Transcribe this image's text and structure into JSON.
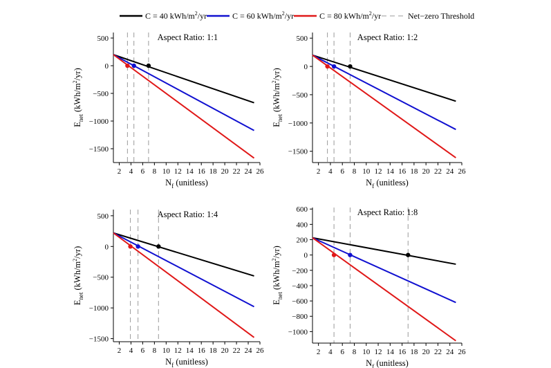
{
  "colors": {
    "c40": "#000000",
    "c60": "#1010d0",
    "c80": "#e01818",
    "threshold": "#9a9a9a"
  },
  "legend": {
    "c40": {
      "pre": "C = 40 kWh/m",
      "sup": "2",
      "post": "/yr"
    },
    "c60": {
      "pre": "C = 60 kWh/m",
      "sup": "2",
      "post": "/yr"
    },
    "c80": {
      "pre": "C = 80 kWh/m",
      "sup": "2",
      "post": "/yr"
    },
    "threshold": "Net−zero Threshold"
  },
  "chart_data": [
    {
      "type": "line",
      "title": "Aspect Ratio: 1:1",
      "xlabel": {
        "main": "N",
        "sub": "f",
        "rest": " (unitless)"
      },
      "ylabel": {
        "main": "E",
        "sub": "net",
        "pre": " (kWh/m",
        "sup": "2",
        "post": "/yr)"
      },
      "xlim": [
        1,
        26
      ],
      "ylim": [
        -1750,
        600
      ],
      "xticks": [
        2,
        4,
        6,
        8,
        10,
        12,
        14,
        16,
        18,
        20,
        22,
        24,
        26
      ],
      "yticks": [
        500,
        0,
        -500,
        -1000,
        -1500
      ],
      "ytick_labels": [
        "500",
        "0",
        "−500",
        "−1000",
        "−1500"
      ],
      "series": [
        {
          "name": "C = 40 kWh/m2/yr",
          "color_key": "c40",
          "x": [
            1,
            25
          ],
          "y": [
            200,
            -670
          ],
          "threshold_x": 7.0
        },
        {
          "name": "C = 60 kWh/m2/yr",
          "color_key": "c60",
          "x": [
            1,
            25
          ],
          "y": [
            200,
            -1170
          ],
          "threshold_x": 4.5
        },
        {
          "name": "C = 80 kWh/m2/yr",
          "color_key": "c80",
          "x": [
            1,
            25
          ],
          "y": [
            200,
            -1670
          ],
          "threshold_x": 3.4
        }
      ]
    },
    {
      "type": "line",
      "title": "Aspect Ratio: 1:2",
      "xlabel": {
        "main": "N",
        "sub": "f",
        "rest": " (unitless)"
      },
      "ylabel": {
        "main": "E",
        "sub": "net",
        "pre": " (kWh/m",
        "sup": "2",
        "post": "/yr)"
      },
      "xlim": [
        1,
        26
      ],
      "ylim": [
        -1700,
        600
      ],
      "xticks": [
        2,
        4,
        6,
        8,
        10,
        12,
        14,
        16,
        18,
        20,
        22,
        24,
        26
      ],
      "yticks": [
        500,
        0,
        -500,
        -1000,
        -1500
      ],
      "ytick_labels": [
        "500",
        "0",
        "−500",
        "−1000",
        "−1500"
      ],
      "series": [
        {
          "name": "C = 40 kWh/m2/yr",
          "color_key": "c40",
          "x": [
            1,
            25
          ],
          "y": [
            200,
            -615
          ],
          "threshold_x": 7.3
        },
        {
          "name": "C = 60 kWh/m2/yr",
          "color_key": "c60",
          "x": [
            1,
            25
          ],
          "y": [
            200,
            -1115
          ],
          "threshold_x": 4.6
        },
        {
          "name": "C = 80 kWh/m2/yr",
          "color_key": "c80",
          "x": [
            1,
            25
          ],
          "y": [
            200,
            -1615
          ],
          "threshold_x": 3.5
        }
      ]
    },
    {
      "type": "line",
      "title": "Aspect Ratio: 1:4",
      "xlabel": {
        "main": "N",
        "sub": "f",
        "rest": " (unitless)"
      },
      "ylabel": {
        "main": "E",
        "sub": "net",
        "pre": " (kWh/m",
        "sup": "2",
        "post": "/yr)"
      },
      "xlim": [
        1,
        26
      ],
      "ylim": [
        -1550,
        600
      ],
      "xticks": [
        2,
        4,
        6,
        8,
        10,
        12,
        14,
        16,
        18,
        20,
        22,
        24,
        26
      ],
      "yticks": [
        500,
        0,
        -500,
        -1000,
        -1500
      ],
      "ytick_labels": [
        "500",
        "0",
        "−500",
        "−1000",
        "−1500"
      ],
      "series": [
        {
          "name": "C = 40 kWh/m2/yr",
          "color_key": "c40",
          "x": [
            1,
            25
          ],
          "y": [
            220,
            -480
          ],
          "threshold_x": 8.7
        },
        {
          "name": "C = 60 kWh/m2/yr",
          "color_key": "c60",
          "x": [
            1,
            25
          ],
          "y": [
            220,
            -980
          ],
          "threshold_x": 5.2
        },
        {
          "name": "C = 80 kWh/m2/yr",
          "color_key": "c80",
          "x": [
            1,
            25
          ],
          "y": [
            220,
            -1480
          ],
          "threshold_x": 3.9
        }
      ]
    },
    {
      "type": "line",
      "title": "Aspect Ratio: 1:8",
      "xlabel": {
        "main": "N",
        "sub": "f",
        "rest": " (unitless)"
      },
      "ylabel": {
        "main": "E",
        "sub": "net",
        "pre": " (kWh/m",
        "sup": "2",
        "post": "/yr)"
      },
      "xlim": [
        1,
        26
      ],
      "ylim": [
        -1150,
        620
      ],
      "xticks": [
        2,
        4,
        6,
        8,
        10,
        12,
        14,
        16,
        18,
        20,
        22,
        24,
        26
      ],
      "yticks": [
        600,
        400,
        200,
        0,
        -200,
        -400,
        -600,
        -800,
        -1000
      ],
      "ytick_labels": [
        "600",
        "400",
        "200",
        "0",
        "−200",
        "−400",
        "−600",
        "−800",
        "−1000"
      ],
      "series": [
        {
          "name": "C = 40 kWh/m2/yr",
          "color_key": "c40",
          "x": [
            1,
            25
          ],
          "y": [
            225,
            -120
          ],
          "threshold_x": 17.0
        },
        {
          "name": "C = 60 kWh/m2/yr",
          "color_key": "c60",
          "x": [
            1,
            25
          ],
          "y": [
            225,
            -620
          ],
          "threshold_x": 7.3
        },
        {
          "name": "C = 80 kWh/m2/yr",
          "color_key": "c80",
          "x": [
            1,
            25
          ],
          "y": [
            225,
            -1120
          ],
          "threshold_x": 4.6
        }
      ]
    }
  ]
}
